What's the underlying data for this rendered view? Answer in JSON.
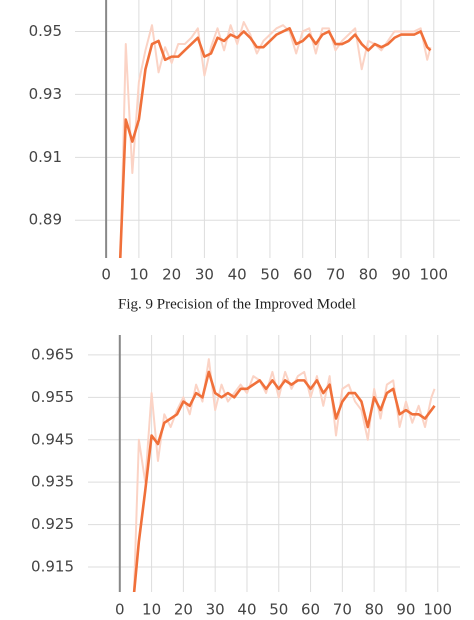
{
  "chart_data": [
    {
      "type": "line",
      "caption": "Fig. 9 Precision of the Improved Model",
      "x": [
        4,
        6,
        8,
        10,
        12,
        14,
        16,
        18,
        20,
        22,
        24,
        26,
        28,
        30,
        32,
        34,
        36,
        38,
        40,
        42,
        44,
        46,
        48,
        50,
        52,
        54,
        56,
        58,
        60,
        62,
        64,
        66,
        68,
        70,
        72,
        74,
        76,
        78,
        80,
        82,
        84,
        86,
        88,
        90,
        92,
        94,
        96,
        98,
        99
      ],
      "series": [
        {
          "color": "#fbd3c5",
          "values": [
            0.86,
            0.946,
            0.905,
            0.934,
            0.944,
            0.952,
            0.937,
            0.945,
            0.94,
            0.946,
            0.946,
            0.948,
            0.951,
            0.936,
            0.945,
            0.951,
            0.944,
            0.952,
            0.946,
            0.953,
            0.949,
            0.943,
            0.947,
            0.949,
            0.951,
            0.952,
            0.95,
            0.943,
            0.95,
            0.951,
            0.943,
            0.951,
            0.951,
            0.944,
            0.947,
            0.949,
            0.951,
            0.938,
            0.947,
            0.946,
            0.944,
            0.947,
            0.95,
            0.95,
            0.95,
            0.95,
            0.951,
            0.941,
            0.945
          ]
        },
        {
          "color": "#f0703a",
          "values": [
            0.87,
            0.922,
            0.915,
            0.922,
            0.938,
            0.946,
            0.947,
            0.941,
            0.942,
            0.942,
            0.944,
            0.946,
            0.948,
            0.942,
            0.943,
            0.948,
            0.947,
            0.949,
            0.948,
            0.95,
            0.948,
            0.945,
            0.945,
            0.947,
            0.949,
            0.95,
            0.951,
            0.946,
            0.947,
            0.949,
            0.946,
            0.949,
            0.95,
            0.946,
            0.946,
            0.947,
            0.949,
            0.946,
            0.944,
            0.946,
            0.945,
            0.946,
            0.948,
            0.949,
            0.949,
            0.949,
            0.95,
            0.945,
            0.944
          ]
        }
      ],
      "xlim": [
        -9.5,
        108
      ],
      "xticks": [
        0,
        10,
        20,
        30,
        40,
        50,
        60,
        70,
        80,
        90,
        100
      ],
      "ylim": [
        0.878,
        0.96
      ],
      "yticks": [
        0.89,
        0.91,
        0.93,
        0.95
      ],
      "grid": true
    },
    {
      "type": "line",
      "x": [
        4,
        6,
        8,
        10,
        12,
        14,
        16,
        18,
        20,
        22,
        24,
        26,
        28,
        30,
        32,
        34,
        36,
        38,
        40,
        42,
        44,
        46,
        48,
        50,
        52,
        54,
        56,
        58,
        60,
        62,
        64,
        66,
        68,
        70,
        72,
        74,
        76,
        78,
        80,
        82,
        84,
        86,
        88,
        90,
        92,
        94,
        96,
        98,
        99
      ],
      "series": [
        {
          "color": "#fbd3c5",
          "values": [
            0.898,
            0.945,
            0.935,
            0.956,
            0.94,
            0.951,
            0.948,
            0.952,
            0.955,
            0.951,
            0.958,
            0.954,
            0.964,
            0.952,
            0.958,
            0.954,
            0.956,
            0.958,
            0.956,
            0.96,
            0.959,
            0.956,
            0.961,
            0.955,
            0.961,
            0.957,
            0.96,
            0.961,
            0.955,
            0.96,
            0.953,
            0.96,
            0.946,
            0.957,
            0.958,
            0.954,
            0.952,
            0.945,
            0.957,
            0.95,
            0.958,
            0.959,
            0.948,
            0.954,
            0.949,
            0.953,
            0.948,
            0.955,
            0.957
          ]
        },
        {
          "color": "#f0703a",
          "values": [
            0.905,
            0.921,
            0.933,
            0.946,
            0.944,
            0.949,
            0.95,
            0.951,
            0.954,
            0.953,
            0.956,
            0.955,
            0.961,
            0.956,
            0.955,
            0.956,
            0.955,
            0.957,
            0.957,
            0.958,
            0.959,
            0.957,
            0.959,
            0.957,
            0.959,
            0.958,
            0.959,
            0.959,
            0.957,
            0.959,
            0.956,
            0.958,
            0.95,
            0.954,
            0.956,
            0.956,
            0.954,
            0.948,
            0.955,
            0.952,
            0.956,
            0.957,
            0.951,
            0.952,
            0.951,
            0.951,
            0.95,
            0.952,
            0.953
          ]
        }
      ],
      "xlim": [
        -10,
        107
      ],
      "xticks": [
        0,
        10,
        20,
        30,
        40,
        50,
        60,
        70,
        80,
        90,
        100
      ],
      "ylim": [
        0.9091,
        0.9697
      ],
      "yticks": [
        0.915,
        0.925,
        0.935,
        0.945,
        0.955,
        0.965
      ],
      "grid": true
    }
  ]
}
